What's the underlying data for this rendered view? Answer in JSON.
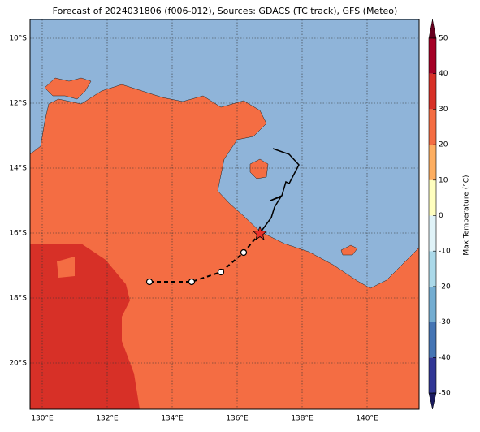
{
  "title": "Forecast of 2024031806 (f006-012), Sources: GDACS (TC track), GFS (Meteo)",
  "map": {
    "lon_range": [
      129.625,
      141.6
    ],
    "lat_range": [
      -21.425,
      -9.425
    ],
    "lon_ticks": [
      {
        "value": 130,
        "label": "130°E"
      },
      {
        "value": 132,
        "label": "132°E"
      },
      {
        "value": 134,
        "label": "134°E"
      },
      {
        "value": 136,
        "label": "136°E"
      },
      {
        "value": 138,
        "label": "138°E"
      },
      {
        "value": 140,
        "label": "140°E"
      }
    ],
    "lat_ticks": [
      {
        "value": -10,
        "label": "10°S"
      },
      {
        "value": -12,
        "label": "12°S"
      },
      {
        "value": -14,
        "label": "14°S"
      },
      {
        "value": -16,
        "label": "16°S"
      },
      {
        "value": -18,
        "label": "18°S"
      },
      {
        "value": -20,
        "label": "20°S"
      }
    ],
    "grid": true
  },
  "colorbar": {
    "label": "Max Temperature (°C)",
    "ticks": [
      -50,
      -40,
      -30,
      -20,
      -10,
      0,
      10,
      20,
      30,
      40,
      50
    ],
    "colors": [
      "#313695",
      "#4575b4",
      "#74add1",
      "#abd9e9",
      "#e0f3f8",
      "#ffffbf",
      "#fdae61",
      "#f46d43",
      "#d73027",
      "#a50026"
    ]
  }
}
